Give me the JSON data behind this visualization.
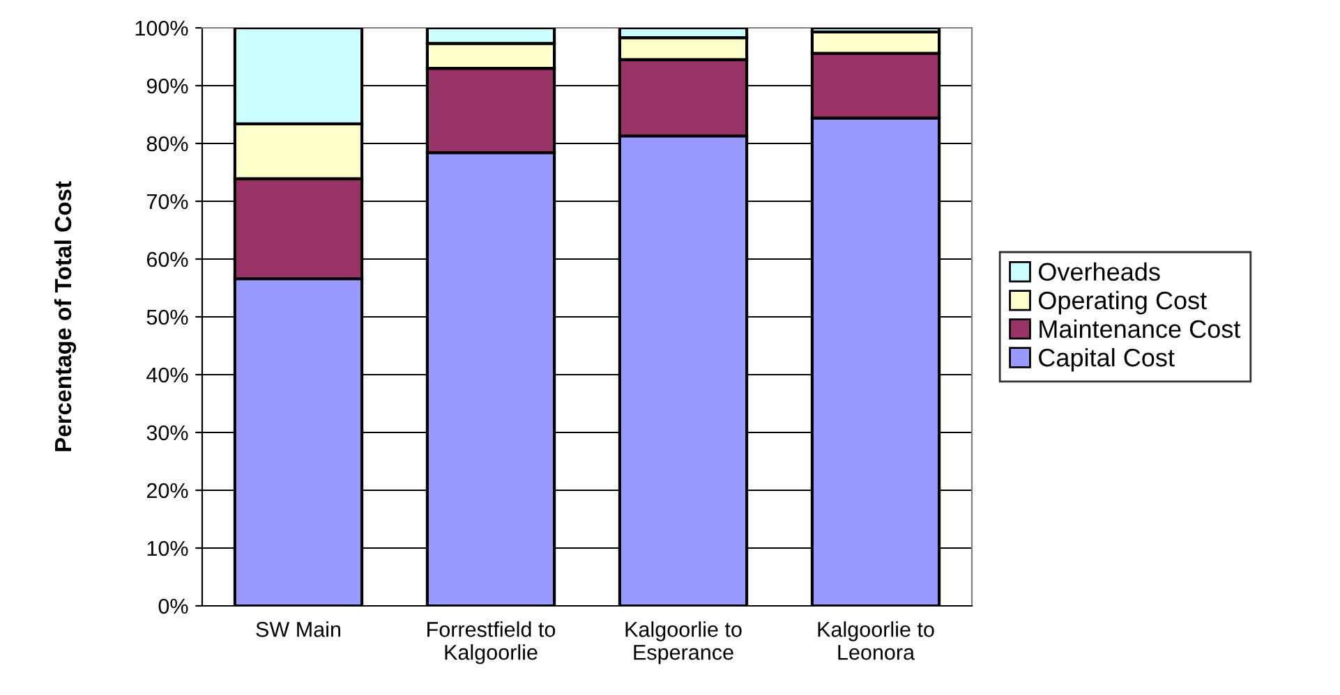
{
  "chart_data": {
    "type": "bar",
    "stacked": true,
    "ylabel": "Percentage of Total Cost",
    "categories": [
      "SW Main",
      "Forrestfield to\nKalgoorlie",
      "Kalgoorlie to\nEsperance",
      "Kalgoorlie to\nLeonora"
    ],
    "series": [
      {
        "name": "Capital Cost",
        "color": "#9999ff",
        "values": [
          56.6,
          78.4,
          81.3,
          84.4
        ]
      },
      {
        "name": "Maintenance Cost",
        "color": "#993366",
        "values": [
          17.3,
          14.6,
          13.2,
          11.2
        ]
      },
      {
        "name": "Operating Cost",
        "color": "#ffffcc",
        "values": [
          9.5,
          4.3,
          3.8,
          3.7
        ]
      },
      {
        "name": "Overheads",
        "color": "#ccffff",
        "values": [
          16.6,
          2.7,
          1.7,
          0.7
        ]
      }
    ],
    "ylim": [
      0,
      100
    ],
    "yticks": [
      {
        "value": 0,
        "label": "0%"
      },
      {
        "value": 10,
        "label": "10%"
      },
      {
        "value": 20,
        "label": "20%"
      },
      {
        "value": 30,
        "label": "30%"
      },
      {
        "value": 40,
        "label": "40%"
      },
      {
        "value": 50,
        "label": "50%"
      },
      {
        "value": 60,
        "label": "60%"
      },
      {
        "value": 70,
        "label": "70%"
      },
      {
        "value": 80,
        "label": "80%"
      },
      {
        "value": 90,
        "label": "90%"
      },
      {
        "value": 100,
        "label": "100%"
      }
    ],
    "grid": "y",
    "legend": "right"
  }
}
